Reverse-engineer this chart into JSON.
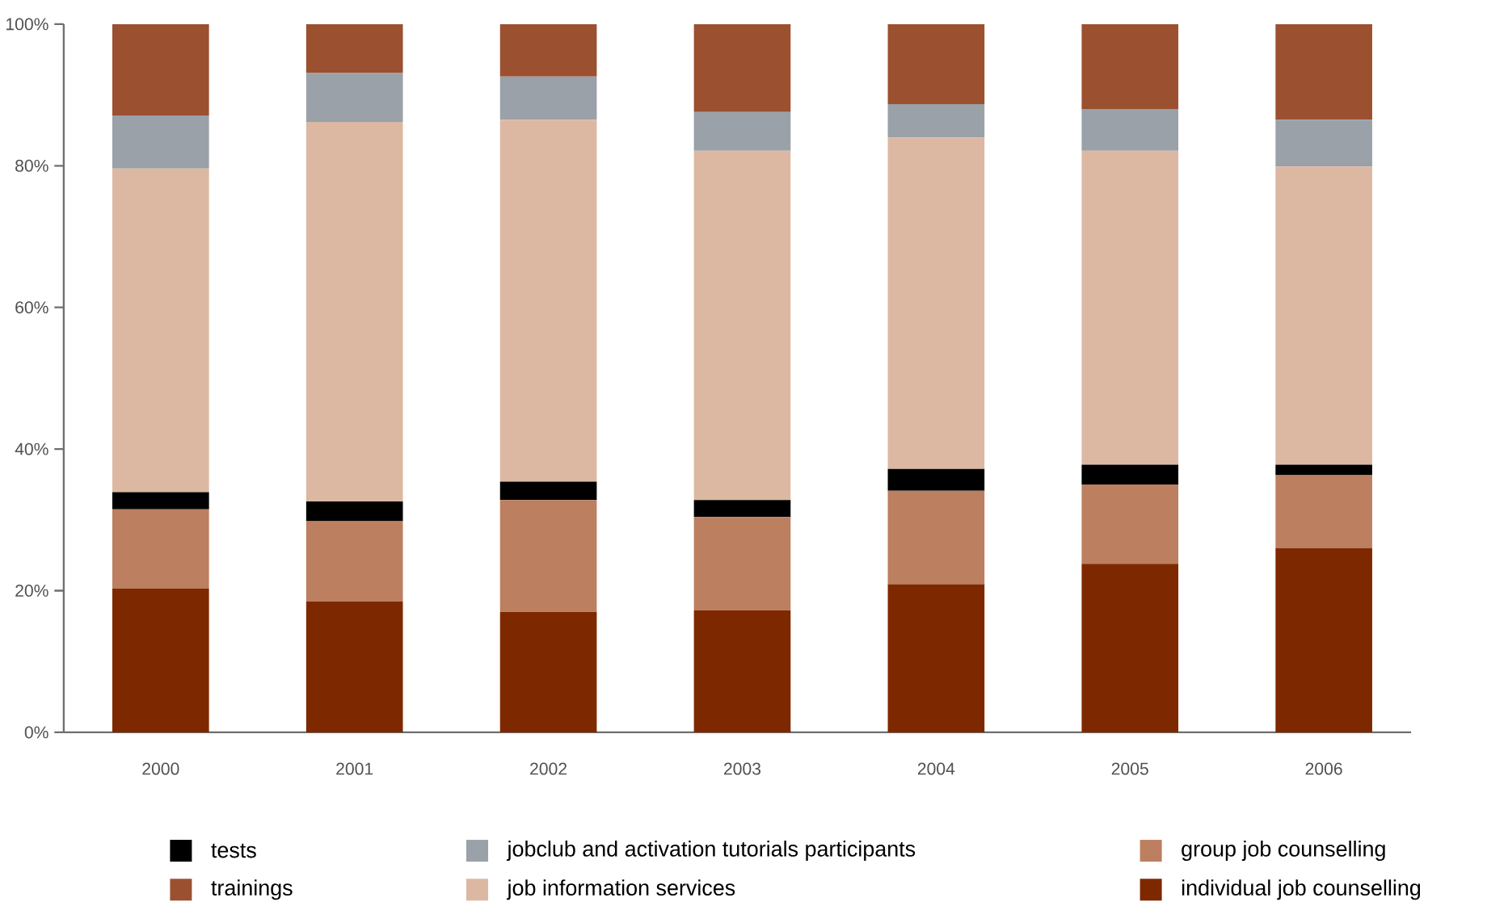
{
  "chart_data": {
    "type": "bar",
    "stacked": true,
    "categories": [
      "2000",
      "2001",
      "2002",
      "2003",
      "2004",
      "2005",
      "2006"
    ],
    "series": [
      {
        "name": "individual job counselling",
        "color": "#7e2800",
        "values": [
          20.3,
          18.5,
          17.0,
          17.2,
          20.9,
          23.8,
          26.0
        ]
      },
      {
        "name": "group job counselling",
        "color": "#bc7f60",
        "values": [
          11.2,
          11.3,
          15.8,
          13.2,
          13.2,
          11.2,
          10.3
        ]
      },
      {
        "name": "tests",
        "color": "#000000",
        "values": [
          2.4,
          2.8,
          2.6,
          2.4,
          3.1,
          2.8,
          1.5
        ]
      },
      {
        "name": "job information services",
        "color": "#dcb8a2",
        "values": [
          45.7,
          53.6,
          51.1,
          49.3,
          46.8,
          44.3,
          42.1
        ]
      },
      {
        "name": "jobclub and activation tutorials participants",
        "color": "#9aa1a8",
        "values": [
          7.5,
          6.9,
          6.1,
          5.5,
          4.7,
          5.9,
          6.6
        ]
      },
      {
        "name": "trainings",
        "color": "#9b5030",
        "values": [
          12.9,
          6.9,
          7.4,
          12.4,
          11.3,
          12.0,
          13.5
        ]
      }
    ],
    "ylim": [
      0,
      100
    ],
    "yticks": [
      {
        "value": 0,
        "label": "0%"
      },
      {
        "value": 20,
        "label": "20%"
      },
      {
        "value": 40,
        "label": "40%"
      },
      {
        "value": 60,
        "label": "60%"
      },
      {
        "value": 80,
        "label": "80%"
      },
      {
        "value": 100,
        "label": "100%"
      }
    ],
    "legend": "bottom"
  }
}
